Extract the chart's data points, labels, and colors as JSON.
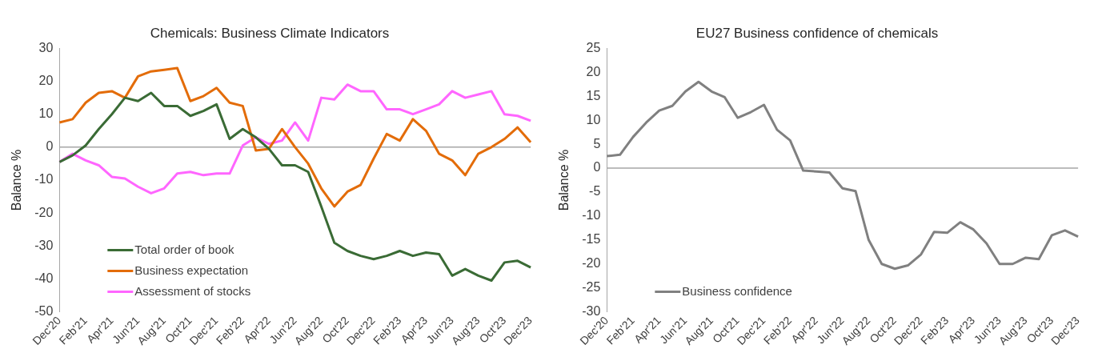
{
  "chart_data": [
    {
      "type": "line",
      "title": "Chemicals: Business Climate Indicators",
      "ylabel": "Balance %",
      "categories": [
        "Dec'20",
        null,
        "Feb'21",
        null,
        "Apr'21",
        null,
        "Jun'21",
        null,
        "Aug'21",
        null,
        "Oct'21",
        null,
        "Dec'21",
        null,
        "Feb'22",
        null,
        "Apr'22",
        null,
        "Jun'22",
        null,
        "Aug'22",
        null,
        "Oct'22",
        null,
        "Dec'22",
        null,
        "Feb'23",
        null,
        "Apr'23",
        null,
        "Jun'23",
        null,
        "Aug'23",
        null,
        "Oct'23",
        null,
        "Dec'23"
      ],
      "series": [
        {
          "name": "Total order of book",
          "color": "#3a6b35",
          "values": [
            -4.5,
            -2.5,
            0.5,
            5.5,
            10,
            15,
            14,
            16.5,
            12.5,
            12.5,
            9.5,
            11,
            13,
            2.5,
            5.5,
            3,
            -0.5,
            -5.5,
            -5.5,
            -7.5,
            -18,
            -29,
            -31.5,
            -33,
            -34,
            -33,
            -31.5,
            -33,
            -32,
            -32.5,
            -39,
            -37,
            -39,
            -40.5,
            -35,
            -34.5,
            -36.5
          ]
        },
        {
          "name": "Business expectation",
          "color": "#e36c09",
          "values": [
            7.5,
            8.5,
            13.5,
            16.5,
            17,
            15,
            21.5,
            23,
            23.5,
            24,
            14,
            15.5,
            18,
            13.5,
            12.5,
            -1,
            -0.5,
            5.5,
            0,
            -5,
            -12.5,
            -18,
            -13.5,
            -11.5,
            -3.5,
            4,
            2,
            8.5,
            5,
            -2,
            -4,
            -8.5,
            -2,
            0,
            2.5,
            6,
            1.5
          ]
        },
        {
          "name": "Assessment of stocks",
          "color": "#ff66ff",
          "values": [
            -4.5,
            -2,
            -4,
            -5.5,
            -9,
            -9.5,
            -12,
            -14,
            -12.5,
            -8,
            -7.5,
            -8.5,
            -8,
            -8,
            0.5,
            3,
            1,
            2,
            7.5,
            2,
            15,
            14.5,
            19,
            17,
            17,
            11.5,
            11.5,
            10,
            11.5,
            13,
            17,
            15,
            16,
            17,
            10,
            9.5,
            8
          ]
        }
      ],
      "ylim": [
        -50,
        30
      ],
      "yticks": [
        -50,
        -40,
        -30,
        -20,
        -10,
        0,
        10,
        20,
        30
      ],
      "legend": "bottom left",
      "ref_lines": [
        {
          "axis": "y",
          "value": 0,
          "color": "#a6a6a6"
        }
      ]
    },
    {
      "type": "line",
      "title": "EU27 Business confidence of chemicals",
      "ylabel": "Balance %",
      "categories": [
        "Dec'20",
        null,
        "Feb'21",
        null,
        "Apr'21",
        null,
        "Jun'21",
        null,
        "Aug'21",
        null,
        "Oct'21",
        null,
        "Dec'21",
        null,
        "Feb'22",
        null,
        "Apr'22",
        null,
        "Jun'22",
        null,
        "Aug'22",
        null,
        "Oct'22",
        null,
        "Dec'22",
        null,
        "Feb'23",
        null,
        "Apr'23",
        null,
        "Jun'23",
        null,
        "Aug'23",
        null,
        "Oct'23",
        null,
        "Dec'23"
      ],
      "series": [
        {
          "name": "Business confidence",
          "color": "#808080",
          "values": [
            2.5,
            2.8,
            6.5,
            9.5,
            12,
            13,
            16,
            18,
            16,
            14.8,
            10.5,
            11.7,
            13.2,
            8,
            5.8,
            -0.5,
            -0.7,
            -0.9,
            -4.2,
            -4.8,
            -15,
            -20,
            -21,
            -20.3,
            -18,
            -13.3,
            -13.5,
            -11.3,
            -12.8,
            -15.7,
            -20,
            -20,
            -18.7,
            -19,
            -14,
            -13,
            -14.3
          ]
        }
      ],
      "ylim": [
        -30,
        25
      ],
      "yticks": [
        -30,
        -25,
        -20,
        -15,
        -10,
        -5,
        0,
        5,
        10,
        15,
        20,
        25
      ],
      "legend": "bottom left",
      "ref_lines": [
        {
          "axis": "y",
          "value": 0,
          "color": "#a6a6a6"
        }
      ]
    }
  ]
}
